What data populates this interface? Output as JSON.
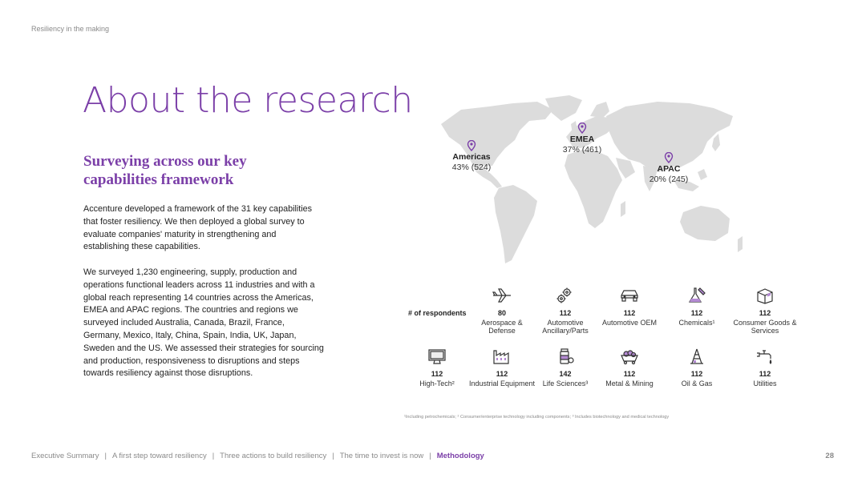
{
  "header": {
    "tag": "Resiliency in the making"
  },
  "title": "About the research",
  "subtitle": "Surveying across our key capabilities framework",
  "paragraphs": [
    "Accenture developed a framework of the 31 key capabilities that foster resiliency. We then deployed a global survey to evaluate companies' maturity in strengthening and establishing these capabilities.",
    "We surveyed 1,230 engineering, supply, production and operations functional leaders across 11 industries and with a global reach representing 14 countries across the Americas, EMEA and APAC regions. The countries and regions we surveyed included Australia, Canada, Brazil, France, Germany, Mexico, Italy, China, Spain, India, UK, Japan, Sweden and the US. We assessed their strategies for sourcing and production, responsiveness to disruptions and steps towards resiliency against those disruptions."
  ],
  "regions": [
    {
      "name": "Americas",
      "value": "43% (524)"
    },
    {
      "name": "EMEA",
      "value": "37% (461)"
    },
    {
      "name": "APAC",
      "value": "20% (245)"
    }
  ],
  "respondents_label": "# of respondents",
  "industries": [
    {
      "count": "80",
      "name": "Aerospace & Defense",
      "icon": "airplane-icon"
    },
    {
      "count": "112",
      "name": "Automotive Ancillary/Parts",
      "icon": "gears-icon"
    },
    {
      "count": "112",
      "name": "Automotive OEM",
      "icon": "car-icon"
    },
    {
      "count": "112",
      "name": "Chemicals¹",
      "icon": "flask-icon"
    },
    {
      "count": "112",
      "name": "Consumer Goods & Services",
      "icon": "box-icon"
    },
    {
      "count": "112",
      "name": "High-Tech²",
      "icon": "monitor-icon"
    },
    {
      "count": "112",
      "name": "Industrial Equipment",
      "icon": "factory-icon"
    },
    {
      "count": "142",
      "name": "Life Sciences³",
      "icon": "medicine-icon"
    },
    {
      "count": "112",
      "name": "Metal & Mining",
      "icon": "mine-cart-icon"
    },
    {
      "count": "112",
      "name": "Oil & Gas",
      "icon": "oil-rig-icon"
    },
    {
      "count": "112",
      "name": "Utilities",
      "icon": "faucet-icon"
    }
  ],
  "footnote": "¹Including petrochemicals; ² Consumer/enterprise technology including components; ³ Includes biotechnology and medical technology",
  "nav": [
    {
      "label": "Executive Summary",
      "active": false
    },
    {
      "label": "A first step toward resiliency",
      "active": false
    },
    {
      "label": "Three actions to build resiliency",
      "active": false
    },
    {
      "label": "The time to invest is now",
      "active": false
    },
    {
      "label": "Methodology",
      "active": true
    }
  ],
  "page_number": "28",
  "colors": {
    "accent": "#7b3fa8",
    "map": "#d9d9d9",
    "text": "#222222",
    "muted": "#8a8a8a"
  }
}
